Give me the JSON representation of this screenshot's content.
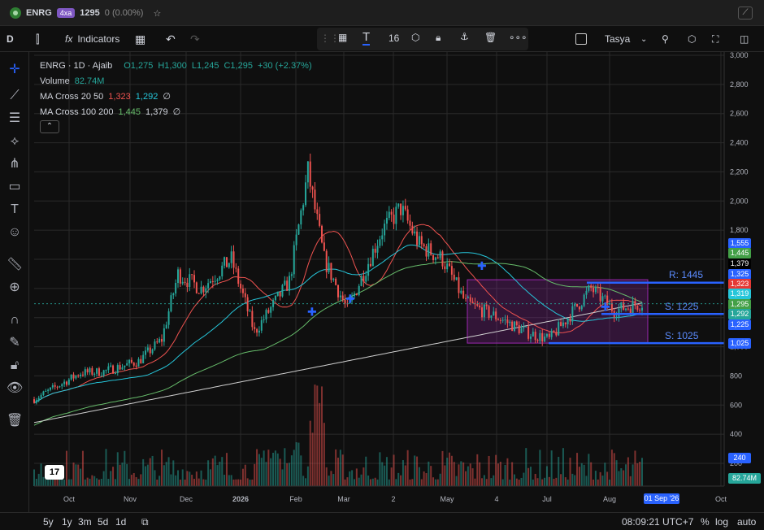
{
  "tab": {
    "symbol": "ENRG",
    "badge": "4xa",
    "price": "1295",
    "change": "0 (0.00%)"
  },
  "toolbar": {
    "interval": "D",
    "indicators_label": "Indicators",
    "font_size": "16",
    "layout_name": "Tasya"
  },
  "legend": {
    "title": "ENRG · 1D · Ajaib",
    "ohlc": {
      "o": "O1,275",
      "h": "H1,300",
      "l": "L1,245",
      "c": "C1,295",
      "chg": "+30 (+2.37%)"
    },
    "volume": {
      "label": "Volume",
      "value": "82.74M"
    },
    "ma1": {
      "label": "MA Cross 20 50",
      "v1": "1,323",
      "v2": "1,292",
      "v3": "∅"
    },
    "ma2": {
      "label": "MA Cross 100 200",
      "v1": "1,445",
      "v2": "1,379",
      "v3": "∅"
    }
  },
  "colors": {
    "up": "#26a69a",
    "down": "#ef5350",
    "ma20": "#ef5350",
    "ma50": "#26c6da",
    "ma100": "#66bb6a",
    "ma200": "#9e9e9e",
    "level": "#2962ff",
    "box": "#9c27b0"
  },
  "price_axis": [
    "3,000",
    "2,800",
    "2,600",
    "2,400",
    "2,200",
    "2,000",
    "1,800",
    "1,600",
    "1,400",
    "1,200",
    "1,000",
    "800",
    "600",
    "400",
    "200"
  ],
  "price_labels": [
    {
      "v": "1,555",
      "c": "#2962ff",
      "y": 299
    },
    {
      "v": "1,445",
      "c": "#43a047",
      "y": 311
    },
    {
      "v": "1,379",
      "c": "#000000",
      "y": 324
    },
    {
      "v": "1,325",
      "c": "#2962ff",
      "y": 337
    },
    {
      "v": "1,323",
      "c": "#e53935",
      "y": 349
    },
    {
      "v": "1,319",
      "c": "#26c6da",
      "y": 361
    },
    {
      "v": "1,295",
      "c": "#43a047",
      "y": 374
    },
    {
      "v": "1,292",
      "c": "#26a69a",
      "y": 386
    },
    {
      "v": "1,225",
      "c": "#2962ff",
      "y": 399
    },
    {
      "v": "1,025",
      "c": "#2962ff",
      "y": 422
    },
    {
      "v": "240",
      "c": "#2962ff",
      "y": 563
    },
    {
      "v": "82.74M",
      "c": "#26a69a",
      "y": 588
    }
  ],
  "time_axis": [
    "Oct",
    "Nov",
    "Dec",
    "2026",
    "Feb",
    "Mar",
    "2",
    "May",
    "4",
    "Jul",
    "Aug",
    "Oct"
  ],
  "date_cursor": "01 Sep '26",
  "levels": {
    "r": "R: 1445",
    "s1": "S: 1225",
    "s2": "S: 1025"
  },
  "bottom": {
    "ranges": [
      "5y",
      "1y",
      "3m",
      "5d",
      "1d"
    ],
    "clock": "08:09:21 UTC+7",
    "pct": "%",
    "log": "log",
    "auto": "auto"
  }
}
